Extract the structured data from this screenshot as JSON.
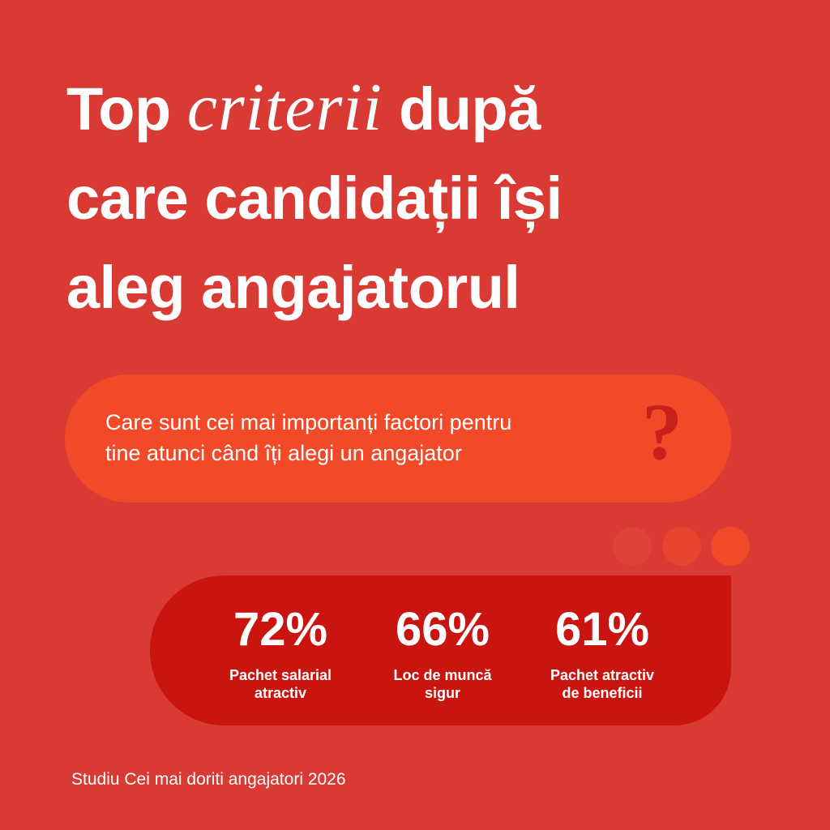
{
  "title": {
    "line1_start": "Top",
    "line1_emphasis": "criterii",
    "line1_end": "după",
    "line2": "care candidații își",
    "line3": "aleg angajatorul"
  },
  "question": {
    "lines": [
      "Care sunt cei mai importanți factori pentru",
      "tine atunci când îți alegi un angajator"
    ],
    "mark": "?"
  },
  "stats": [
    {
      "value": "72%",
      "label": [
        "Pachet salarial",
        "atractiv"
      ]
    },
    {
      "value": "66%",
      "label": [
        "Loc de muncă",
        "sigur"
      ]
    },
    {
      "value": "61%",
      "label": [
        "Pachet atractiv",
        "de beneficii"
      ]
    }
  ],
  "footer": "Studiu Cei mai doriti angajatori 2026"
}
